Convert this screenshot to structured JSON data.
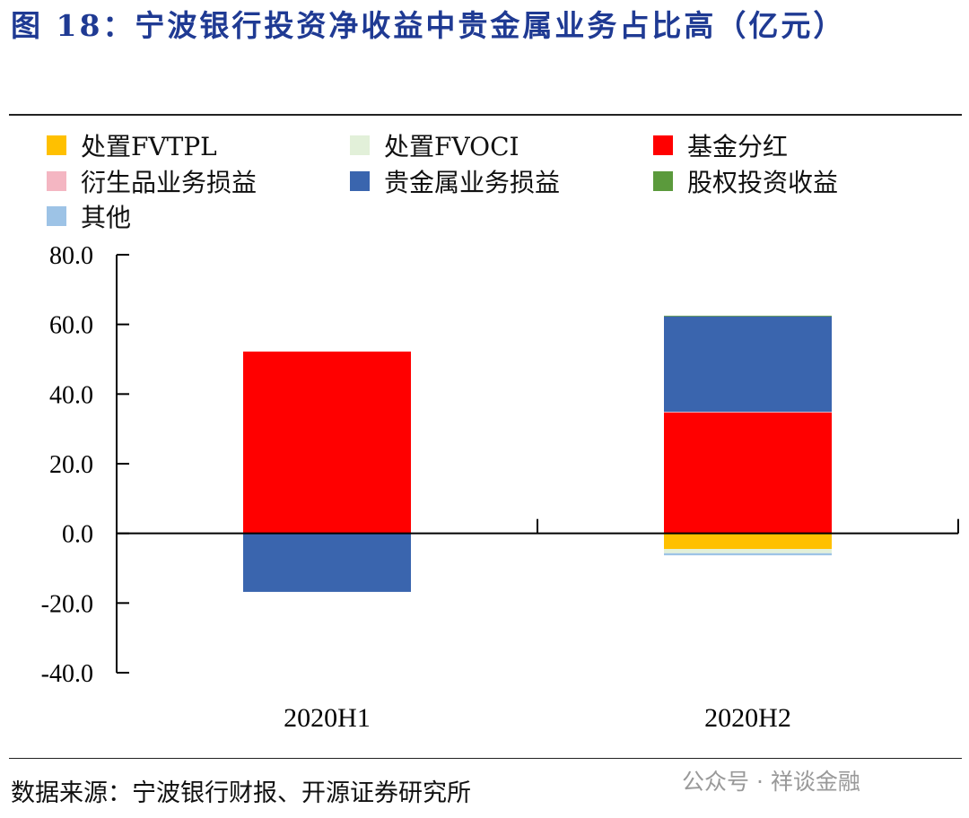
{
  "title": "图 18：宁波银行投资净收益中贵金属业务占比高（亿元）",
  "source": "数据来源：宁波银行财报、开源证券研究所",
  "watermark": "公众号 · 祥谈金融",
  "chart_data": {
    "type": "bar",
    "stacked": true,
    "categories": [
      "2020H1",
      "2020H2"
    ],
    "ylim": [
      -40,
      80
    ],
    "yticks": [
      "-40.0",
      "-20.0",
      "0.0",
      "20.0",
      "40.0",
      "60.0",
      "80.0"
    ],
    "legend_position": "top",
    "grid": false,
    "series": [
      {
        "name": "处置FVTPL",
        "color": "#FFC000",
        "values": [
          0,
          -4.5
        ]
      },
      {
        "name": "处置FVOCI",
        "color": "#E2F0D9",
        "values": [
          0,
          -1.2
        ]
      },
      {
        "name": "基金分红",
        "color": "#FF0000",
        "values": [
          52.2,
          34.7
        ]
      },
      {
        "name": "衍生品业务损益",
        "color": "#F4B6C2",
        "values": [
          0,
          0.2
        ]
      },
      {
        "name": "贵金属业务损益",
        "color": "#3A65AE",
        "values": [
          -16.8,
          27.4
        ]
      },
      {
        "name": "股权投资收益",
        "color": "#5B9A3C",
        "values": [
          0,
          0.2
        ]
      },
      {
        "name": "其他",
        "color": "#9DC3E6",
        "values": [
          0,
          -0.6
        ]
      }
    ]
  }
}
